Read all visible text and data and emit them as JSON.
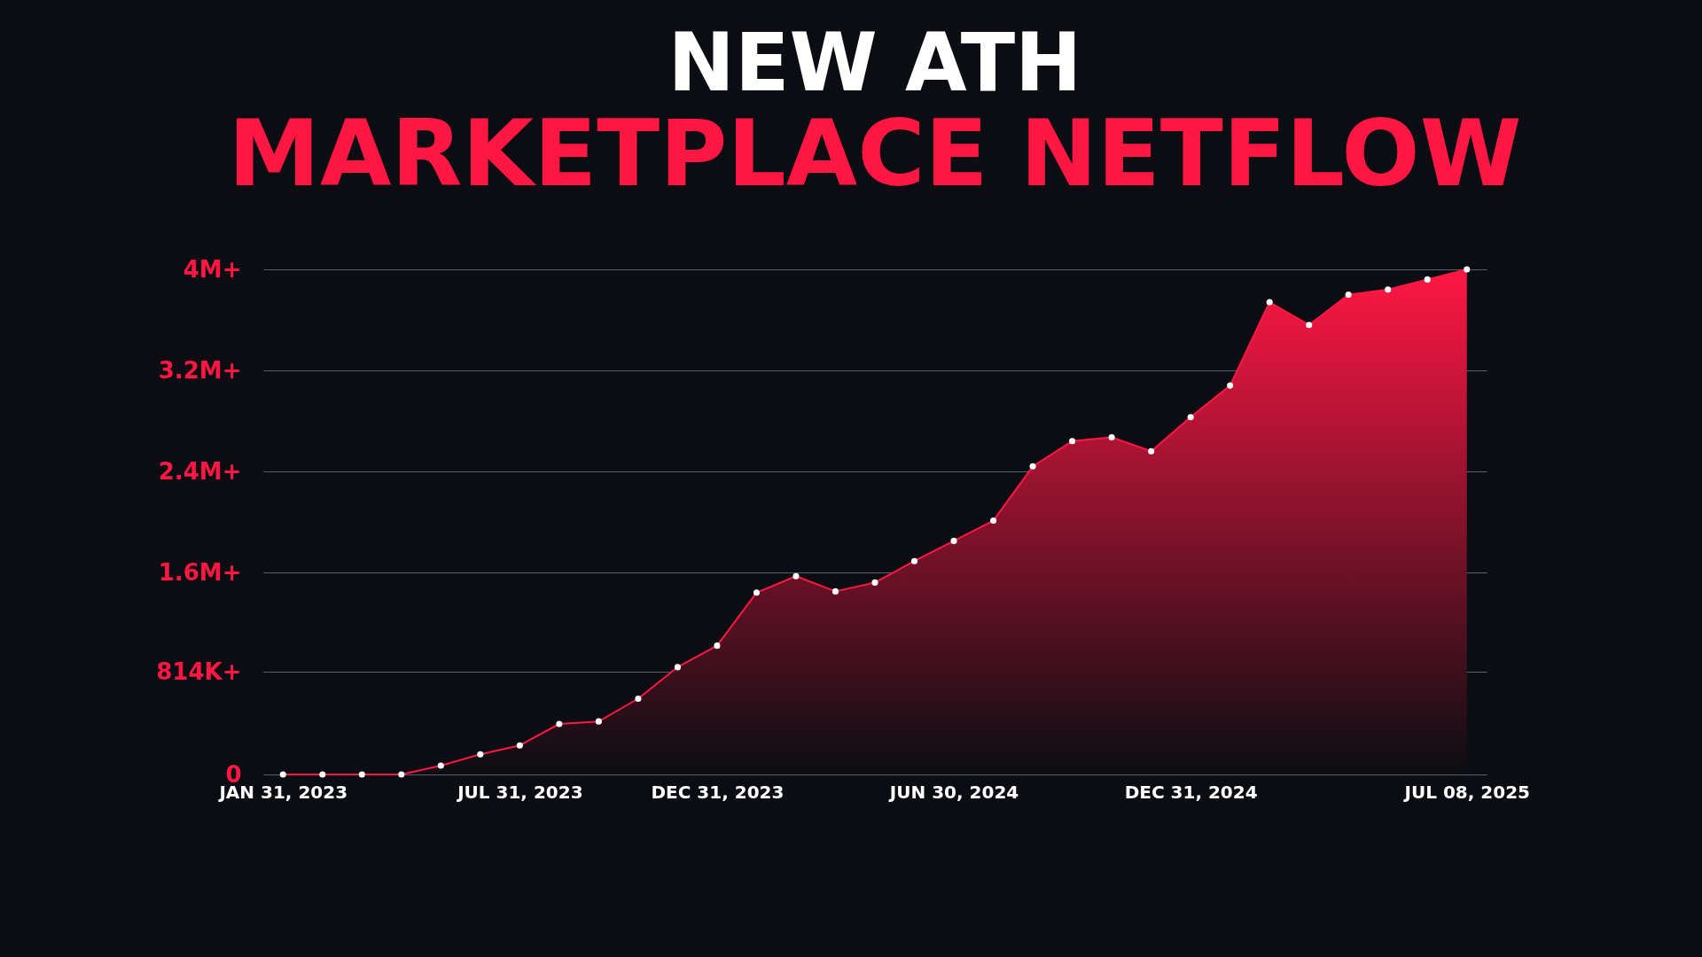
{
  "chart_data": {
    "type": "area",
    "title": "NEW ATH",
    "subtitle": "MARKETPLACE NETFLOW",
    "categories": [
      "JAN 31, 2023",
      null,
      null,
      null,
      null,
      null,
      "JUL 31, 2023",
      null,
      null,
      null,
      null,
      "DEC 31, 2023",
      null,
      null,
      null,
      null,
      null,
      "JUN 30, 2024",
      null,
      null,
      null,
      null,
      null,
      "DEC 31, 2024",
      null,
      null,
      null,
      null,
      null,
      null,
      "JUL 08, 2025"
    ],
    "series": [
      {
        "color": "#ff1744",
        "values": [
          0,
          0,
          0,
          0,
          70000,
          160000,
          230000,
          400000,
          420000,
          600000,
          850000,
          1020000,
          1440000,
          1570000,
          1450000,
          1520000,
          1690000,
          1850000,
          2010000,
          2440000,
          2640000,
          2670000,
          2560000,
          2830000,
          3080000,
          3740000,
          3560000,
          3800000,
          3840000,
          3920000,
          4000000
        ]
      }
    ],
    "ylim": [
      0,
      4000000
    ],
    "yticks": [
      0,
      {
        "value": 814000,
        "label": "814K+"
      },
      {
        "value": 1600000,
        "label": "1.6M+"
      },
      {
        "value": 2400000,
        "label": "2.4M+"
      },
      {
        "value": 3200000,
        "label": "3.2M+"
      },
      {
        "value": 4000000,
        "label": "4M+"
      }
    ],
    "grid": "y",
    "marker": "circle"
  }
}
